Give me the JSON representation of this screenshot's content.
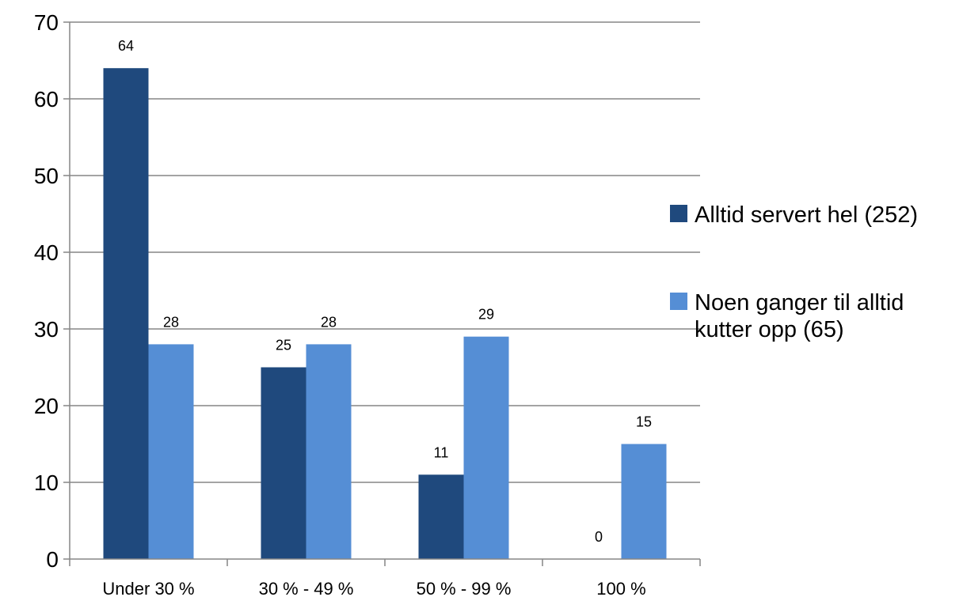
{
  "chart_data": {
    "type": "bar",
    "title": "",
    "xlabel": "",
    "ylabel": "",
    "categories": [
      "Under 30 %",
      "30 % - 49 %",
      "50 % - 99 %",
      "100 %"
    ],
    "series": [
      {
        "name": "Alltid servert hel (252)",
        "values": [
          64,
          25,
          11,
          0
        ],
        "color": "#1F497D"
      },
      {
        "name": "Noen ganger til alltid kutter opp (65)",
        "values": [
          28,
          28,
          29,
          15
        ],
        "color": "#558ED5"
      }
    ],
    "legend_lines": [
      [
        "Alltid servert hel (252)"
      ],
      [
        "Noen ganger til alltid",
        "kutter opp (65)"
      ]
    ],
    "ylim": [
      0,
      70
    ],
    "y_ticks": [
      0,
      10,
      20,
      30,
      40,
      50,
      60,
      70
    ],
    "grid": true,
    "legend_position": "right",
    "data_labels": true,
    "gridline_color": "#868686"
  }
}
